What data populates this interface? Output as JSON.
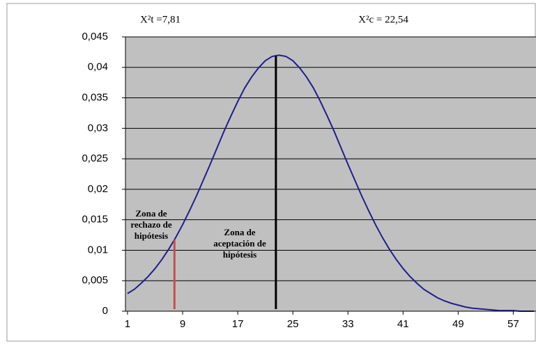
{
  "chart_data": {
    "type": "line",
    "x": [
      1,
      2,
      3,
      4,
      5,
      6,
      7,
      8,
      9,
      10,
      11,
      12,
      13,
      14,
      15,
      16,
      17,
      18,
      19,
      20,
      21,
      22,
      23,
      24,
      25,
      26,
      27,
      28,
      29,
      30,
      31,
      32,
      33,
      34,
      35,
      36,
      37,
      38,
      39,
      40,
      41,
      42,
      43,
      44,
      45,
      46,
      47,
      48,
      49,
      50,
      51,
      52,
      53,
      54,
      55,
      56,
      57,
      58,
      59,
      60
    ],
    "series": [
      {
        "color": "#1f1f8f",
        "values": [
          0.0029,
          0.0036,
          0.0046,
          0.0057,
          0.007,
          0.0085,
          0.0102,
          0.0121,
          0.0142,
          0.0165,
          0.0189,
          0.0215,
          0.0241,
          0.0268,
          0.0295,
          0.032,
          0.0344,
          0.0366,
          0.0384,
          0.0399,
          0.0411,
          0.0418,
          0.042,
          0.0418,
          0.0411,
          0.0399,
          0.0384,
          0.0366,
          0.0344,
          0.032,
          0.0295,
          0.0268,
          0.0241,
          0.0215,
          0.0189,
          0.0165,
          0.0142,
          0.0121,
          0.0102,
          0.0085,
          0.007,
          0.0057,
          0.0046,
          0.0036,
          0.0029,
          0.0022,
          0.0017,
          0.0013,
          0.001,
          0.0007,
          0.0005,
          0.0004,
          0.0003,
          0.0002,
          0.0001,
          0.0001,
          0.0001,
          0,
          0,
          0
        ]
      }
    ],
    "xlim": [
      0.7,
      60.3
    ],
    "xticks": [
      1,
      9,
      17,
      25,
      33,
      41,
      49,
      57
    ],
    "ylim": [
      0,
      0.045
    ],
    "yticks": [
      0,
      {
        "value": 0.005,
        "label": "0,005"
      },
      {
        "value": 0.01,
        "label": "0,01"
      },
      {
        "value": 0.015,
        "label": "0,015"
      },
      {
        "value": 0.02,
        "label": "0,02"
      },
      {
        "value": 0.025,
        "label": "0,025"
      },
      {
        "value": 0.03,
        "label": "0,03"
      },
      {
        "value": 0.035,
        "label": "0,035"
      },
      {
        "value": 0.04,
        "label": "0,04"
      },
      {
        "value": 0.045,
        "label": "0,045"
      }
    ],
    "grid": true,
    "markers": [
      {
        "label": "X²t =7,81",
        "x": 7.81,
        "color": "#c0504d"
      },
      {
        "label": "X²c = 22,54",
        "x": 22.54,
        "color": "#000000"
      }
    ],
    "annotations": [
      {
        "lines": [
          "Zona de",
          "rechazo de",
          "hipótesis"
        ]
      },
      {
        "lines": [
          "Zona de",
          "aceptación de",
          "hipótesis"
        ]
      }
    ]
  }
}
